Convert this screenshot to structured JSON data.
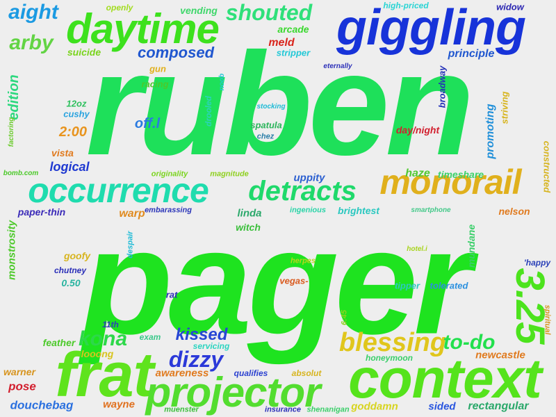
{
  "words": [
    {
      "text": "ruben",
      "color": "#1ee05a"
    },
    {
      "text": "pager",
      "color": "#1ee31f"
    },
    {
      "text": "giggling",
      "color": "#1733d9"
    },
    {
      "text": "context",
      "color": "#55e31c"
    },
    {
      "text": "daytime",
      "color": "#3de11d"
    },
    {
      "text": "frat",
      "color": "#5fe31d"
    },
    {
      "text": "occurrence",
      "color": "#1fdcae"
    },
    {
      "text": "monorail",
      "color": "#e0b01c"
    },
    {
      "text": "projector",
      "color": "#53dd2f"
    },
    {
      "text": "detracts",
      "color": "#1fd96b"
    },
    {
      "text": "3.25",
      "color": "#4ce31d"
    },
    {
      "text": "blessing",
      "color": "#e0c61c"
    },
    {
      "text": "shouted",
      "color": "#2fe07a"
    },
    {
      "text": "aight",
      "color": "#1b9ae2"
    },
    {
      "text": "arby",
      "color": "#62d444"
    },
    {
      "text": "kona",
      "color": "#2dd84a"
    },
    {
      "text": "to-do",
      "color": "#22e04d"
    },
    {
      "text": "dizzy",
      "color": "#2b39d9"
    },
    {
      "text": "kissed",
      "color": "#2746d5"
    },
    {
      "text": "composed",
      "color": "#1f56cf"
    },
    {
      "text": "edition",
      "color": "#2dd87f"
    },
    {
      "text": "off.l",
      "color": "#2a7ae0"
    },
    {
      "text": "2:00",
      "color": "#e8941e"
    },
    {
      "text": "logical",
      "color": "#1f39d1"
    },
    {
      "text": "occurrence",
      "color": "#1fdcae"
    },
    {
      "text": "vending",
      "color": "#3fd76b"
    },
    {
      "text": "openly",
      "color": "#a2dc1f"
    },
    {
      "text": "high-priced",
      "color": "#2ad4d4"
    },
    {
      "text": "widow",
      "color": "#2b26b2"
    },
    {
      "text": "arcade",
      "color": "#3ad82e"
    },
    {
      "text": "meld",
      "color": "#d9261d"
    },
    {
      "text": "stripper",
      "color": "#22c8d6"
    },
    {
      "text": "suicide",
      "color": "#7ad41e"
    },
    {
      "text": "principle",
      "color": "#1f56cf"
    },
    {
      "text": "eternally",
      "color": "#2b2fb8"
    },
    {
      "text": "gun",
      "color": "#e0b01c"
    },
    {
      "text": "racing",
      "color": "#4cc92a"
    },
    {
      "text": "noob",
      "color": "#22c8d6"
    },
    {
      "text": "broadway",
      "color": "#2431b8"
    },
    {
      "text": "12oz",
      "color": "#2fc05e"
    },
    {
      "text": "cushy",
      "color": "#2aa3df"
    },
    {
      "text": "stocking",
      "color": "#1fbbd6"
    },
    {
      "text": "drooled",
      "color": "#2ad4b8"
    },
    {
      "text": "spatula",
      "color": "#2ab45a"
    },
    {
      "text": "chez",
      "color": "#2a7ea8"
    },
    {
      "text": "striving",
      "color": "#d7b41e"
    },
    {
      "text": "promoting",
      "color": "#1f8fd9"
    },
    {
      "text": "day/night",
      "color": "#d21f2e"
    },
    {
      "text": "factoring",
      "color": "#6acb2b"
    },
    {
      "text": "vista",
      "color": "#e07a1e"
    },
    {
      "text": "bomb.com",
      "color": "#4cc92a"
    },
    {
      "text": "originality",
      "color": "#7ad41e"
    },
    {
      "text": "magnitude",
      "color": "#8fd020"
    },
    {
      "text": "uppity",
      "color": "#2b5fd0"
    },
    {
      "text": "haze",
      "color": "#52c932"
    },
    {
      "text": "timeshare",
      "color": "#3bd16a"
    },
    {
      "text": "constructed",
      "color": "#d7b41e"
    },
    {
      "text": "paper-thin",
      "color": "#3b2bb8"
    },
    {
      "text": "embarassing",
      "color": "#2b35b8"
    },
    {
      "text": "warp",
      "color": "#e08a1e"
    },
    {
      "text": "linda",
      "color": "#2aa86a"
    },
    {
      "text": "ingenious",
      "color": "#2bd4a8"
    },
    {
      "text": "brightest",
      "color": "#2bc8c0"
    },
    {
      "text": "smartphone",
      "color": "#45c98a"
    },
    {
      "text": "nelson",
      "color": "#e07a1e"
    },
    {
      "text": "witch",
      "color": "#3bbf3b"
    },
    {
      "text": "despair",
      "color": "#1fbbd6"
    },
    {
      "text": "hotel.i",
      "color": "#a8d41e"
    },
    {
      "text": "mundane",
      "color": "#3bcf6a"
    },
    {
      "text": "'happy",
      "color": "#2b41b8"
    },
    {
      "text": "monstrosity",
      "color": "#4cc92a"
    },
    {
      "text": "goofy",
      "color": "#d7b41e"
    },
    {
      "text": "chutney",
      "color": "#2b2fb8"
    },
    {
      "text": "0.50",
      "color": "#2ab4a0"
    },
    {
      "text": "herpes",
      "color": "#b8d41e"
    },
    {
      "text": "vegas-",
      "color": "#d95a1e"
    },
    {
      "text": "tipper",
      "color": "#2bc8c0"
    },
    {
      "text": "tolerated",
      "color": "#2a90df"
    },
    {
      "text": "rat",
      "color": "#2b2fb8"
    },
    {
      "text": "spiritual",
      "color": "#d7941e"
    },
    {
      "text": "11th",
      "color": "#2b41b8"
    },
    {
      "text": "exam",
      "color": "#3bc88a"
    },
    {
      "text": "6:45",
      "color": "#8fd020"
    },
    {
      "text": "feather",
      "color": "#4cc92a"
    },
    {
      "text": "servicing",
      "color": "#2bd4c0"
    },
    {
      "text": "looong",
      "color": "#d7c41e"
    },
    {
      "text": "newcastle",
      "color": "#e07a1e"
    },
    {
      "text": "honeymoon",
      "color": "#3bcf6a"
    },
    {
      "text": "warner",
      "color": "#d7941e"
    },
    {
      "text": "awareness",
      "color": "#e07a1e"
    },
    {
      "text": "qualifies",
      "color": "#2b41d0"
    },
    {
      "text": "absolut",
      "color": "#d7b41e"
    },
    {
      "text": "pose",
      "color": "#d21f2e"
    },
    {
      "text": "douchebag",
      "color": "#2a70df"
    },
    {
      "text": "wayne",
      "color": "#e0701e"
    },
    {
      "text": "muenster",
      "color": "#3bbf3b"
    },
    {
      "text": "insurance",
      "color": "#2b2fb8"
    },
    {
      "text": "shenanigan",
      "color": "#3bcf6a"
    },
    {
      "text": "goddamn",
      "color": "#d7d41e"
    },
    {
      "text": "sided",
      "color": "#2a56df"
    },
    {
      "text": "rectangular",
      "color": "#2aa86a"
    }
  ]
}
